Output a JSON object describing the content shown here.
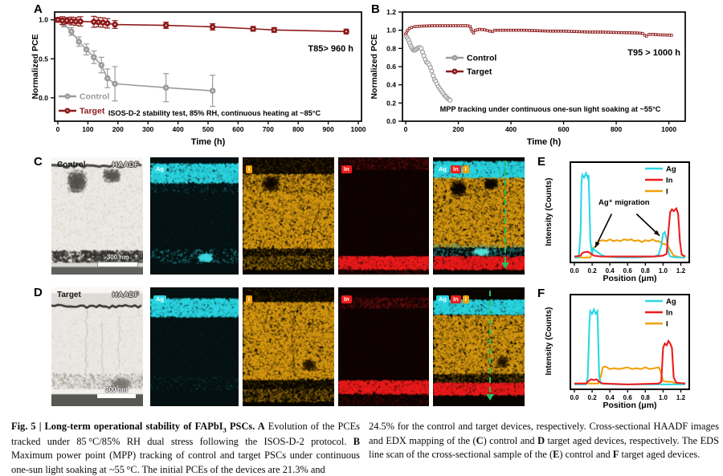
{
  "colors": {
    "control": "#9b9b9b",
    "target": "#8e1b1b",
    "ag": "#2bd7e3",
    "indium": "#ee1c1c",
    "iodine": "#f0a007",
    "arrow_green": "#22c05e",
    "axis": "#000000"
  },
  "panels": {
    "a": {
      "letter": "A"
    },
    "b": {
      "letter": "B"
    },
    "c": {
      "letter": "C",
      "sample": "Control",
      "mode": "HAADF",
      "scalebar": "300 nm",
      "chip_ag": "Ag",
      "chip_i": "I",
      "chip_in": "In"
    },
    "d": {
      "letter": "D",
      "sample": "Target",
      "mode": "HAADF",
      "scalebar": "300 nm",
      "chip_ag": "Ag",
      "chip_i": "I",
      "chip_in": "In"
    },
    "e": {
      "letter": "E"
    },
    "f": {
      "letter": "F"
    }
  },
  "chart_data": [
    {
      "id": "A",
      "type": "line",
      "xlabel": "Time (h)",
      "ylabel": "Normalized PCE",
      "xlim": [
        0,
        1000
      ],
      "ylim": [
        -0.3,
        1.1
      ],
      "xticks": [
        0,
        100,
        200,
        300,
        400,
        500,
        600,
        700,
        800,
        900,
        1000
      ],
      "xtick_decimals": 0,
      "yticks": [
        0.0,
        0.5,
        1.0
      ],
      "ytick_decimals": 1,
      "badge": "T85> 960 h",
      "note": "ISOS-D-2 stability test,  85% RH,  continuous heating at ~85°C",
      "legend_position": "inside-bottom-left",
      "series": [
        {
          "name": "Control",
          "color": "control",
          "marker": "circle",
          "x": [
            0,
            20,
            45,
            70,
            95,
            120,
            145,
            165,
            190,
            360,
            515
          ],
          "y": [
            1.0,
            0.95,
            0.85,
            0.72,
            0.62,
            0.52,
            0.42,
            0.25,
            0.18,
            0.13,
            0.09
          ],
          "yerr": [
            0.02,
            0.04,
            0.05,
            0.06,
            0.07,
            0.08,
            0.1,
            0.12,
            0.22,
            0.18,
            0.2
          ]
        },
        {
          "name": "Target",
          "color": "target",
          "marker": "circle",
          "x": [
            0,
            15,
            30,
            45,
            60,
            75,
            120,
            135,
            150,
            165,
            190,
            360,
            515,
            650,
            720,
            960
          ],
          "y": [
            1.0,
            0.99,
            0.99,
            0.985,
            0.98,
            0.98,
            0.975,
            0.97,
            0.965,
            0.955,
            0.94,
            0.93,
            0.91,
            0.885,
            0.87,
            0.85
          ],
          "yerr": [
            0.03,
            0.05,
            0.04,
            0.05,
            0.05,
            0.06,
            0.07,
            0.06,
            0.06,
            0.06,
            0.05,
            0.04,
            0.04,
            0.03,
            0.03,
            0.03
          ]
        }
      ]
    },
    {
      "id": "B",
      "type": "line",
      "xlabel": "Time (h)",
      "ylabel": "Normalized PCE",
      "xlim": [
        0,
        1050
      ],
      "ylim": [
        0,
        1.2
      ],
      "xticks": [
        0,
        200,
        400,
        600,
        800,
        1000
      ],
      "xtick_decimals": 0,
      "yticks": [
        0.0,
        0.2,
        0.4,
        0.6,
        0.8,
        1.0,
        1.2
      ],
      "ytick_decimals": 1,
      "badge": "T95 > 1000 h",
      "note": "MPP tracking under continuous one-sun light soaking at ~55°C",
      "legend_position": "inside-middle-left",
      "series": [
        {
          "name": "Control",
          "color": "control",
          "marker": "circle",
          "msize": 2.4,
          "x": [
            3,
            7,
            11,
            15,
            19,
            23,
            27,
            31,
            35,
            39,
            44,
            49,
            54,
            59,
            64,
            69,
            74,
            79,
            84,
            89,
            94,
            99,
            104,
            109,
            114,
            119,
            124,
            129,
            134,
            139,
            144,
            149,
            154,
            159,
            164,
            169
          ],
          "y": [
            0.93,
            0.91,
            0.89,
            0.86,
            0.83,
            0.81,
            0.79,
            0.78,
            0.78,
            0.79,
            0.8,
            0.81,
            0.81,
            0.8,
            0.76,
            0.72,
            0.68,
            0.65,
            0.64,
            0.62,
            0.59,
            0.55,
            0.5,
            0.46,
            0.44,
            0.41,
            0.38,
            0.36,
            0.34,
            0.32,
            0.3,
            0.28,
            0.27,
            0.25,
            0.24,
            0.23
          ]
        },
        {
          "name": "Target",
          "color": "target",
          "marker": "square",
          "dense": true,
          "x": [
            0,
            4,
            8,
            14,
            22,
            35,
            60,
            100,
            150,
            200,
            235,
            245,
            252,
            258,
            265,
            280,
            300,
            320,
            330,
            338,
            350,
            400,
            450,
            500,
            550,
            600,
            650,
            700,
            750,
            800,
            850,
            880,
            900,
            908,
            915,
            925,
            940,
            960,
            985,
            1010
          ],
          "y": [
            0.96,
            0.98,
            1.0,
            1.02,
            1.03,
            1.04,
            1.045,
            1.05,
            1.05,
            1.05,
            1.05,
            1.04,
            0.99,
            0.97,
            1.0,
            1.01,
            1.005,
            0.99,
            0.985,
            1.0,
            1.0,
            1.0,
            1.0,
            0.995,
            0.99,
            0.99,
            0.985,
            0.98,
            0.98,
            0.975,
            0.972,
            0.97,
            0.965,
            0.945,
            0.935,
            0.955,
            0.955,
            0.95,
            0.948,
            0.945
          ]
        }
      ]
    },
    {
      "id": "E",
      "type": "line",
      "xlabel": "Position (μm)",
      "ylabel": "Intensity (Counts)",
      "xlim": [
        0,
        1.25
      ],
      "ylim": [
        0,
        1
      ],
      "xticks": [
        0.0,
        0.2,
        0.4,
        0.6,
        0.8,
        1.0,
        1.2
      ],
      "xtick_decimals": 1,
      "yticks": [],
      "legend_position": "inside-top-right",
      "annotation": {
        "text": "Ag⁺ migration",
        "tx": 0.56,
        "ty": 0.6,
        "arrows": [
          {
            "x1": 0.42,
            "y1": 0.5,
            "x2": 0.235,
            "y2": 0.13
          },
          {
            "x1": 0.7,
            "y1": 0.5,
            "x2": 0.96,
            "y2": 0.26
          }
        ]
      },
      "series": [
        {
          "name": "I",
          "color": "iodine",
          "x": [
            0,
            0.18,
            0.2,
            0.22,
            0.25,
            0.28,
            0.32,
            0.36,
            0.4,
            0.44,
            0.48,
            0.52,
            0.56,
            0.6,
            0.64,
            0.68,
            0.72,
            0.76,
            0.8,
            0.84,
            0.88,
            0.92,
            0.95,
            1.0,
            1.05,
            1.08,
            1.12,
            1.2,
            1.25
          ],
          "y": [
            0.02,
            0.02,
            0.08,
            0.13,
            0.15,
            0.2,
            0.21,
            0.2,
            0.22,
            0.2,
            0.21,
            0.2,
            0.22,
            0.21,
            0.22,
            0.2,
            0.21,
            0.19,
            0.21,
            0.2,
            0.22,
            0.2,
            0.2,
            0.17,
            0.16,
            0.1,
            0.04,
            0.02,
            0.02
          ]
        },
        {
          "name": "Ag",
          "color": "ag",
          "x": [
            0,
            0.05,
            0.07,
            0.08,
            0.09,
            0.11,
            0.13,
            0.15,
            0.16,
            0.17,
            0.18,
            0.2,
            0.21,
            0.23,
            0.26,
            0.3,
            0.35,
            0.5,
            0.7,
            0.9,
            0.95,
            0.98,
            1.0,
            1.02,
            1.04,
            1.06,
            1.08,
            1.15,
            1.25
          ],
          "y": [
            0.02,
            0.02,
            0.3,
            0.85,
            0.93,
            0.9,
            0.95,
            0.9,
            0.93,
            0.6,
            0.2,
            0.05,
            0.12,
            0.1,
            0.08,
            0.05,
            0.03,
            0.02,
            0.02,
            0.03,
            0.05,
            0.15,
            0.28,
            0.3,
            0.22,
            0.08,
            0.03,
            0.02,
            0.02
          ]
        },
        {
          "name": "In",
          "color": "indium",
          "x": [
            0,
            0.07,
            0.09,
            0.12,
            0.16,
            0.19,
            0.22,
            0.3,
            0.6,
            0.9,
            1.0,
            1.04,
            1.06,
            1.08,
            1.1,
            1.12,
            1.15,
            1.17,
            1.19,
            1.21,
            1.25
          ],
          "y": [
            0.03,
            0.04,
            0.07,
            0.08,
            0.08,
            0.06,
            0.04,
            0.03,
            0.03,
            0.03,
            0.04,
            0.06,
            0.3,
            0.52,
            0.55,
            0.53,
            0.56,
            0.5,
            0.2,
            0.05,
            0.03
          ]
        }
      ],
      "legend_order": [
        "Ag",
        "In",
        "I"
      ]
    },
    {
      "id": "F",
      "type": "line",
      "xlabel": "Position (μm)",
      "ylabel": "Intensity (Counts)",
      "xlim": [
        0,
        1.25
      ],
      "ylim": [
        0,
        1
      ],
      "xticks": [
        0.0,
        0.2,
        0.4,
        0.6,
        0.8,
        1.0,
        1.2
      ],
      "xtick_decimals": 1,
      "yticks": [],
      "legend_position": "inside-top-right",
      "series": [
        {
          "name": "I",
          "color": "iodine",
          "x": [
            0,
            0.27,
            0.3,
            0.32,
            0.35,
            0.4,
            0.45,
            0.5,
            0.55,
            0.6,
            0.65,
            0.7,
            0.75,
            0.8,
            0.85,
            0.9,
            0.95,
            0.97,
            1.0,
            1.05,
            1.1,
            1.15,
            1.25
          ],
          "y": [
            0.03,
            0.03,
            0.12,
            0.22,
            0.23,
            0.2,
            0.21,
            0.2,
            0.21,
            0.22,
            0.2,
            0.21,
            0.2,
            0.22,
            0.2,
            0.21,
            0.22,
            0.18,
            0.06,
            0.05,
            0.05,
            0.03,
            0.03
          ]
        },
        {
          "name": "Ag",
          "color": "ag",
          "x": [
            0,
            0.13,
            0.15,
            0.17,
            0.18,
            0.2,
            0.22,
            0.24,
            0.26,
            0.27,
            0.28,
            0.3,
            0.5,
            1.0,
            1.25
          ],
          "y": [
            0.02,
            0.02,
            0.1,
            0.75,
            0.88,
            0.85,
            0.9,
            0.85,
            0.88,
            0.5,
            0.1,
            0.03,
            0.02,
            0.02,
            0.02
          ]
        },
        {
          "name": "In",
          "color": "indium",
          "x": [
            0,
            0.13,
            0.16,
            0.19,
            0.22,
            0.25,
            0.28,
            0.32,
            0.6,
            0.95,
            0.98,
            1.0,
            1.02,
            1.04,
            1.06,
            1.08,
            1.1,
            1.12,
            1.15,
            1.25
          ],
          "y": [
            0.03,
            0.03,
            0.06,
            0.08,
            0.07,
            0.08,
            0.05,
            0.03,
            0.02,
            0.03,
            0.05,
            0.45,
            0.5,
            0.48,
            0.53,
            0.5,
            0.45,
            0.1,
            0.04,
            0.03
          ]
        }
      ],
      "legend_order": [
        "Ag",
        "In",
        "I"
      ]
    }
  ],
  "caption": {
    "left": [
      {
        "b": true,
        "t": "Fig. 5 | Long-term operational stability of FAPbI"
      },
      {
        "b": true,
        "sub": true,
        "t": "3"
      },
      {
        "b": true,
        "t": " PSCs. A"
      },
      {
        "t": " Evolution of the PCEs tracked under 85 °C/85% RH dual stress following the ISOS-D-2 protocol. "
      },
      {
        "b": true,
        "t": "B"
      },
      {
        "t": " Maximum power point (MPP) tracking of control and target PSCs under continuous one-sun light soaking at ~55 °C. The initial PCEs of the devices are 21.3% and"
      }
    ],
    "right": [
      {
        "t": "24.5% for the control and target devices, respectively. Cross-sectional HAADF images and EDX mapping of the ("
      },
      {
        "b": true,
        "t": "C"
      },
      {
        "t": ") control and "
      },
      {
        "b": true,
        "t": "D"
      },
      {
        "t": " target aged devices, respectively. The EDS line scan of the cross-sectional sample of the ("
      },
      {
        "b": true,
        "t": "E"
      },
      {
        "t": ") control and "
      },
      {
        "b": true,
        "t": "F"
      },
      {
        "t": " target aged devices."
      }
    ]
  }
}
